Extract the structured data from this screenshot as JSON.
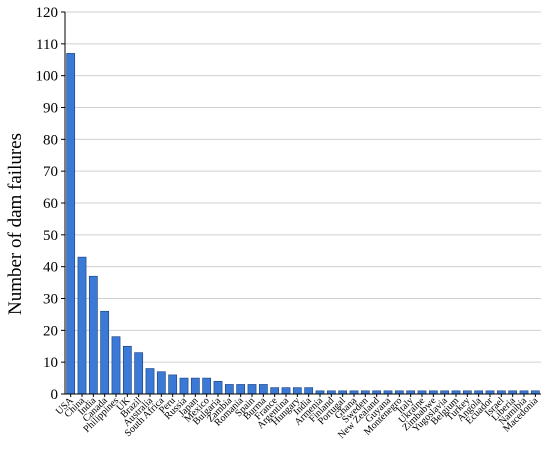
{
  "chart_data": {
    "type": "bar",
    "title": "",
    "xlabel": "",
    "ylabel": "Number of dam failures",
    "ylim": [
      0,
      120
    ],
    "yticks": [
      0,
      10,
      20,
      30,
      40,
      50,
      60,
      70,
      80,
      90,
      100,
      110,
      120
    ],
    "grid": "horizontal",
    "legend": "none",
    "bar_color": "#3a7ad6",
    "bar_edge_color": "#1a3d7a",
    "categories": [
      "USA",
      "China",
      "India",
      "Canada",
      "Philippines",
      "UK",
      "Brazil",
      "Australia",
      "South Africa",
      "Peru",
      "Russia",
      "Japan",
      "Mexico",
      "Bulgaria",
      "Zambia",
      "Romania",
      "Spain",
      "Burma",
      "France",
      "Argentina",
      "Hungary",
      "India",
      "Armenia",
      "Finland",
      "Portugal",
      "Ghana",
      "Sweden",
      "New Zealand",
      "Guyana",
      "Montenegro",
      "Italy",
      "Ukraine",
      "Zimbabwe",
      "Yugoslavia",
      "Belgium",
      "Turkey",
      "Angola",
      "Ecuador",
      "Israel",
      "Liberia",
      "Namibia",
      "Macedonia"
    ],
    "values": [
      107,
      43,
      37,
      26,
      18,
      15,
      13,
      8,
      7,
      6,
      5,
      5,
      5,
      4,
      3,
      3,
      3,
      3,
      2,
      2,
      2,
      2,
      1,
      1,
      1,
      1,
      1,
      1,
      1,
      1,
      1,
      1,
      1,
      1,
      1,
      1,
      1,
      1,
      1,
      1,
      1,
      1
    ]
  }
}
